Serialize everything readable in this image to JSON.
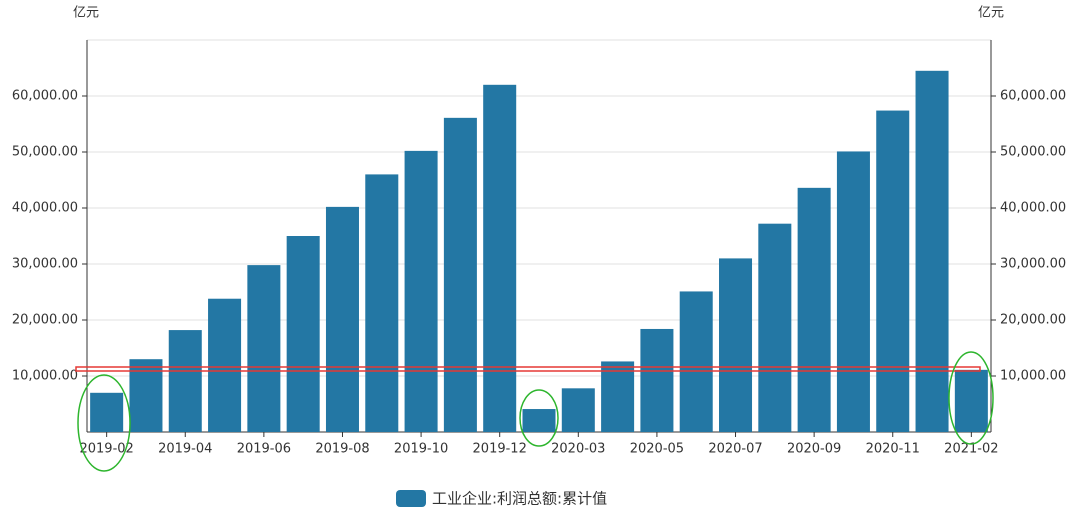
{
  "chart_data": {
    "type": "bar",
    "y_unit": "亿元",
    "y2_unit": "亿元",
    "categories": [
      "2019-02",
      null,
      "2019-04",
      null,
      "2019-06",
      null,
      "2019-08",
      null,
      "2019-10",
      null,
      "2019-12",
      null,
      "2020-03",
      null,
      "2020-05",
      null,
      "2020-07",
      null,
      "2020-09",
      null,
      "2020-11",
      null,
      "2021-02"
    ],
    "series": [
      {
        "name": "工业企业:利润总额:累计值",
        "color": "#2377a4",
        "values": [
          7000,
          13000,
          18200,
          23800,
          29800,
          35000,
          40200,
          46000,
          50200,
          56100,
          62000,
          4100,
          7800,
          12600,
          18400,
          25100,
          31000,
          37200,
          43600,
          50100,
          57400,
          64500,
          11100
        ]
      }
    ],
    "ylim": [
      0,
      70000
    ],
    "yticks": [
      {
        "value": 10000,
        "label": "10,000.00"
      },
      {
        "value": 20000,
        "label": "20,000.00"
      },
      {
        "value": 30000,
        "label": "30,000.00"
      },
      {
        "value": 40000,
        "label": "40,000.00"
      },
      {
        "value": 50000,
        "label": "50,000.00"
      },
      {
        "value": 60000,
        "label": "60,000.00"
      }
    ],
    "y2lim": [
      0,
      70000
    ],
    "y2ticks": [
      {
        "value": 10000,
        "label": "10,000.00"
      },
      {
        "value": 20000,
        "label": "20,000.00"
      },
      {
        "value": 30000,
        "label": "30,000.00"
      },
      {
        "value": 40000,
        "label": "40,000.00"
      },
      {
        "value": 50000,
        "label": "50,000.00"
      },
      {
        "value": 60000,
        "label": "60,000.00"
      }
    ],
    "grid": true,
    "legend": "bottom"
  }
}
